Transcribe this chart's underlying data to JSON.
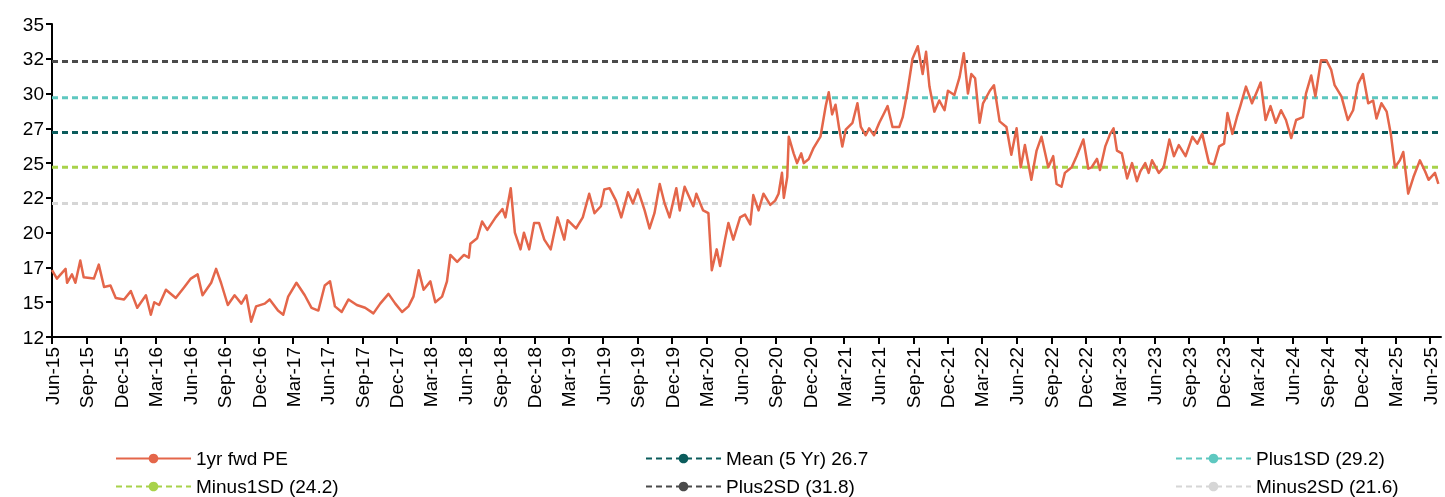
{
  "chart_data": {
    "type": "line",
    "line_style": "solid",
    "marker": "none",
    "grid": false,
    "legend": "bottom",
    "xlim": [
      "2015-06-01",
      "2025-06-30"
    ],
    "xticks": [
      {
        "value": "2015-06-01",
        "label": "Jun-15"
      },
      {
        "value": "2015-09-01",
        "label": "Sep-15"
      },
      {
        "value": "2015-12-01",
        "label": "Dec-15"
      },
      {
        "value": "2016-03-01",
        "label": "Mar-16"
      },
      {
        "value": "2016-06-01",
        "label": "Jun-16"
      },
      {
        "value": "2016-09-01",
        "label": "Sep-16"
      },
      {
        "value": "2016-12-01",
        "label": "Dec-16"
      },
      {
        "value": "2017-03-01",
        "label": "Mar-17"
      },
      {
        "value": "2017-06-01",
        "label": "Jun-17"
      },
      {
        "value": "2017-09-01",
        "label": "Sep-17"
      },
      {
        "value": "2017-12-01",
        "label": "Dec-17"
      },
      {
        "value": "2018-03-01",
        "label": "Mar-18"
      },
      {
        "value": "2018-06-01",
        "label": "Jun-18"
      },
      {
        "value": "2018-09-01",
        "label": "Sep-18"
      },
      {
        "value": "2018-12-01",
        "label": "Dec-18"
      },
      {
        "value": "2019-03-01",
        "label": "Mar-19"
      },
      {
        "value": "2019-06-01",
        "label": "Jun-19"
      },
      {
        "value": "2019-09-01",
        "label": "Sep-19"
      },
      {
        "value": "2019-12-01",
        "label": "Dec-19"
      },
      {
        "value": "2020-03-01",
        "label": "Mar-20"
      },
      {
        "value": "2020-06-01",
        "label": "Jun-20"
      },
      {
        "value": "2020-09-01",
        "label": "Sep-20"
      },
      {
        "value": "2020-12-01",
        "label": "Dec-20"
      },
      {
        "value": "2021-03-01",
        "label": "Mar-21"
      },
      {
        "value": "2021-06-01",
        "label": "Jun-21"
      },
      {
        "value": "2021-09-01",
        "label": "Sep-21"
      },
      {
        "value": "2021-12-01",
        "label": "Dec-21"
      },
      {
        "value": "2022-03-01",
        "label": "Mar-22"
      },
      {
        "value": "2022-06-01",
        "label": "Jun-22"
      },
      {
        "value": "2022-09-01",
        "label": "Sep-22"
      },
      {
        "value": "2022-12-01",
        "label": "Dec-22"
      },
      {
        "value": "2023-03-01",
        "label": "Mar-23"
      },
      {
        "value": "2023-06-01",
        "label": "Jun-23"
      },
      {
        "value": "2023-09-01",
        "label": "Sep-23"
      },
      {
        "value": "2023-12-01",
        "label": "Dec-23"
      },
      {
        "value": "2024-03-01",
        "label": "Mar-24"
      },
      {
        "value": "2024-06-01",
        "label": "Jun-24"
      },
      {
        "value": "2024-09-01",
        "label": "Sep-24"
      },
      {
        "value": "2024-12-01",
        "label": "Dec-24"
      },
      {
        "value": "2025-03-01",
        "label": "Mar-25"
      },
      {
        "value": "2025-06-01",
        "label": "Jun-25"
      }
    ],
    "ylim": [
      12,
      34.5
    ],
    "yticks": [
      12,
      {
        "value": 14.5,
        "label": "15"
      },
      17,
      {
        "value": 19.5,
        "label": "20"
      },
      22,
      {
        "value": 24.5,
        "label": "25"
      },
      27,
      {
        "value": 29.5,
        "label": "30"
      },
      32,
      {
        "value": 34.5,
        "label": "35"
      }
    ],
    "series": [
      {
        "name": "1yr fwd PE",
        "color": "#e4664a",
        "x": [
          "2015-06-01",
          "2015-06-14",
          "2015-07-07",
          "2015-07-11",
          "2015-07-24",
          "2015-08-02",
          "2015-08-15",
          "2015-08-24",
          "2015-09-20",
          "2015-10-03",
          "2015-10-17",
          "2015-11-03",
          "2015-11-17",
          "2015-12-09",
          "2015-12-27",
          "2016-01-13",
          "2016-02-05",
          "2016-02-18",
          "2016-02-27",
          "2016-03-11",
          "2016-03-29",
          "2016-04-24",
          "2016-05-17",
          "2016-06-03",
          "2016-06-21",
          "2016-07-04",
          "2016-07-27",
          "2016-08-09",
          "2016-08-22",
          "2016-09-09",
          "2016-09-27",
          "2016-10-15",
          "2016-10-28",
          "2016-11-10",
          "2016-11-23",
          "2016-12-16",
          "2016-12-29",
          "2017-01-20",
          "2017-02-03",
          "2017-02-16",
          "2017-03-10",
          "2017-04-01",
          "2017-04-19",
          "2017-05-07",
          "2017-05-24",
          "2017-06-07",
          "2017-06-20",
          "2017-07-08",
          "2017-07-26",
          "2017-08-17",
          "2017-09-08",
          "2017-09-30",
          "2017-10-18",
          "2017-11-09",
          "2017-11-27",
          "2017-12-15",
          "2018-01-01",
          "2018-01-14",
          "2018-01-28",
          "2018-02-10",
          "2018-02-28",
          "2018-03-13",
          "2018-03-31",
          "2018-04-13",
          "2018-04-22",
          "2018-05-10",
          "2018-05-28",
          "2018-06-10",
          "2018-06-14",
          "2018-07-02",
          "2018-07-15",
          "2018-07-29",
          "2018-08-20",
          "2018-09-07",
          "2018-09-15",
          "2018-09-29",
          "2018-10-10",
          "2018-10-25",
          "2018-11-03",
          "2018-11-17",
          "2018-11-30",
          "2018-12-13",
          "2018-12-27",
          "2019-01-13",
          "2019-01-31",
          "2019-02-18",
          "2019-02-27",
          "2019-03-21",
          "2019-04-08",
          "2019-04-25",
          "2019-05-09",
          "2019-05-26",
          "2019-06-04",
          "2019-06-18",
          "2019-07-05",
          "2019-07-19",
          "2019-08-06",
          "2019-08-19",
          "2019-09-01",
          "2019-09-19",
          "2019-10-02",
          "2019-10-15",
          "2019-10-29",
          "2019-11-11",
          "2019-11-24",
          "2019-12-12",
          "2019-12-21",
          "2020-01-03",
          "2020-01-26",
          "2020-02-03",
          "2020-02-21",
          "2020-03-06",
          "2020-03-15",
          "2020-03-28",
          "2020-04-06",
          "2020-04-19",
          "2020-04-28",
          "2020-05-11",
          "2020-05-29",
          "2020-06-11",
          "2020-06-25",
          "2020-07-03",
          "2020-07-17",
          "2020-07-30",
          "2020-08-17",
          "2020-08-30",
          "2020-09-08",
          "2020-09-17",
          "2020-09-22",
          "2020-10-01",
          "2020-10-05",
          "2020-10-18",
          "2020-10-27",
          "2020-11-07",
          "2020-11-14",
          "2020-11-27",
          "2020-12-10",
          "2020-12-28",
          "2021-01-11",
          "2021-01-19",
          "2021-01-28",
          "2021-02-06",
          "2021-02-15",
          "2021-02-24",
          "2021-03-05",
          "2021-03-23",
          "2021-04-05",
          "2021-04-14",
          "2021-04-27",
          "2021-05-06",
          "2021-05-19",
          "2021-06-02",
          "2021-06-15",
          "2021-06-24",
          "2021-07-07",
          "2021-07-25",
          "2021-08-03",
          "2021-08-16",
          "2021-08-29",
          "2021-09-12",
          "2021-09-25",
          "2021-10-04",
          "2021-10-13",
          "2021-10-26",
          "2021-11-08",
          "2021-11-22",
          "2021-12-01",
          "2021-12-18",
          "2022-01-01",
          "2022-01-12",
          "2022-01-23",
          "2022-02-01",
          "2022-02-11",
          "2022-02-23",
          "2022-03-04",
          "2022-03-22",
          "2022-04-02",
          "2022-04-17",
          "2022-05-05",
          "2022-05-18",
          "2022-06-01",
          "2022-06-12",
          "2022-06-23",
          "2022-07-10",
          "2022-07-24",
          "2022-08-06",
          "2022-08-24",
          "2022-09-06",
          "2022-09-15",
          "2022-09-28",
          "2022-10-07",
          "2022-10-25",
          "2022-11-07",
          "2022-11-25",
          "2022-12-08",
          "2022-12-17",
          "2022-12-31",
          "2023-01-08",
          "2023-01-22",
          "2023-02-04",
          "2023-02-13",
          "2023-02-22",
          "2023-03-07",
          "2023-03-21",
          "2023-04-03",
          "2023-04-16",
          "2023-04-25",
          "2023-05-08",
          "2023-05-17",
          "2023-05-26",
          "2023-06-13",
          "2023-06-26",
          "2023-07-11",
          "2023-07-23",
          "2023-08-05",
          "2023-08-23",
          "2023-09-10",
          "2023-09-23",
          "2023-10-06",
          "2023-10-24",
          "2023-11-06",
          "2023-11-20",
          "2023-12-03",
          "2023-12-12",
          "2023-12-25",
          "2024-01-06",
          "2024-01-15",
          "2024-01-30",
          "2024-02-15",
          "2024-02-29",
          "2024-03-09",
          "2024-03-22",
          "2024-04-04",
          "2024-04-18",
          "2024-05-02",
          "2024-05-15",
          "2024-05-29",
          "2024-06-11",
          "2024-06-29",
          "2024-07-07",
          "2024-07-21",
          "2024-08-01",
          "2024-08-16",
          "2024-08-30",
          "2024-09-12",
          "2024-09-21",
          "2024-10-09",
          "2024-10-26",
          "2024-11-09",
          "2024-11-22",
          "2024-12-05",
          "2024-12-19",
          "2025-01-01",
          "2025-01-10",
          "2025-01-23",
          "2025-02-06",
          "2025-02-17",
          "2025-02-28",
          "2025-03-13",
          "2025-03-22",
          "2025-04-04",
          "2025-04-18",
          "2025-05-05",
          "2025-05-19",
          "2025-05-28",
          "2025-06-14",
          "2025-06-23"
        ],
        "values": [
          16.8,
          16.2,
          16.9,
          15.9,
          16.5,
          15.9,
          17.5,
          16.3,
          16.2,
          17.2,
          15.6,
          15.7,
          14.8,
          14.7,
          15.3,
          14.1,
          15.0,
          13.6,
          14.5,
          14.3,
          15.4,
          14.8,
          15.6,
          16.2,
          16.5,
          15.0,
          15.9,
          16.9,
          15.9,
          14.3,
          15.0,
          14.4,
          15.0,
          13.1,
          14.2,
          14.4,
          14.7,
          13.9,
          13.6,
          14.9,
          15.9,
          15.0,
          14.1,
          13.9,
          15.7,
          16.0,
          14.2,
          13.8,
          14.7,
          14.3,
          14.1,
          13.7,
          14.4,
          15.1,
          14.4,
          13.8,
          14.2,
          14.9,
          16.8,
          15.4,
          16.0,
          14.5,
          14.9,
          16.0,
          17.9,
          17.4,
          17.9,
          17.7,
          18.7,
          19.1,
          20.3,
          19.7,
          20.6,
          21.2,
          20.6,
          22.7,
          19.5,
          18.3,
          19.5,
          18.3,
          20.2,
          20.2,
          19.0,
          18.3,
          20.6,
          19.0,
          20.4,
          19.8,
          20.6,
          22.3,
          20.9,
          21.4,
          22.6,
          22.7,
          21.8,
          20.6,
          22.4,
          21.6,
          22.6,
          21.1,
          19.8,
          20.9,
          23.0,
          21.6,
          20.6,
          22.7,
          21.1,
          22.8,
          21.4,
          22.3,
          21.1,
          20.9,
          16.8,
          18.3,
          17.1,
          19.0,
          20.2,
          19.0,
          20.6,
          20.8,
          20.1,
          22.2,
          21.1,
          22.3,
          21.5,
          21.8,
          22.3,
          23.8,
          22.0,
          23.5,
          26.4,
          25.2,
          24.5,
          25.2,
          24.5,
          24.8,
          25.6,
          26.4,
          28.6,
          29.6,
          28.0,
          28.7,
          27.1,
          25.7,
          26.9,
          27.4,
          28.8,
          27.1,
          26.5,
          27.0,
          26.5,
          27.4,
          28.1,
          28.6,
          27.1,
          27.1,
          27.8,
          29.7,
          32.0,
          32.9,
          30.9,
          32.5,
          30.0,
          28.2,
          29.0,
          28.3,
          29.7,
          29.4,
          30.7,
          32.4,
          29.5,
          30.9,
          30.6,
          27.4,
          28.8,
          29.7,
          30.1,
          27.5,
          27.1,
          25.1,
          27.0,
          24.2,
          25.8,
          23.3,
          25.4,
          26.4,
          24.2,
          25.0,
          23.0,
          22.8,
          23.8,
          24.2,
          25.0,
          26.2,
          24.1,
          24.2,
          24.8,
          24.0,
          25.7,
          26.6,
          27.0,
          25.4,
          25.2,
          23.4,
          24.5,
          23.2,
          23.9,
          24.5,
          23.8,
          24.7,
          23.8,
          24.2,
          26.2,
          25.0,
          25.8,
          25.0,
          26.4,
          25.9,
          26.6,
          24.5,
          24.4,
          25.7,
          25.9,
          28.1,
          26.6,
          27.8,
          28.6,
          30.0,
          28.8,
          29.7,
          30.3,
          27.6,
          28.6,
          27.4,
          28.3,
          27.6,
          26.3,
          27.6,
          27.8,
          29.5,
          30.8,
          29.3,
          31.9,
          31.9,
          31.2,
          30.1,
          29.3,
          27.6,
          28.3,
          30.2,
          30.9,
          28.8,
          29.0,
          27.7,
          28.8,
          28.2,
          26.6,
          24.2,
          24.7,
          25.3,
          22.3,
          23.5,
          24.7,
          23.9,
          23.3,
          23.8,
          23.0
        ]
      },
      {
        "name": "Mean (5 Yr) 26.7",
        "color": "#0b5c5c",
        "line_style": "dashed",
        "x": [
          "2015-06-01",
          "2025-06-30"
        ],
        "values": [
          26.7,
          26.7
        ]
      },
      {
        "name": "Plus1SD (29.2)",
        "color": "#5ec8c0",
        "line_style": "dashed",
        "x": [
          "2015-06-01",
          "2025-06-30"
        ],
        "values": [
          29.2,
          29.2
        ]
      },
      {
        "name": "Minus1SD (24.2)",
        "color": "#a8d24a",
        "line_style": "dashed",
        "x": [
          "2015-06-01",
          "2025-06-30"
        ],
        "values": [
          24.2,
          24.2
        ]
      },
      {
        "name": "Plus2SD (31.8)",
        "color": "#4a4a4a",
        "line_style": "dashed",
        "x": [
          "2015-06-01",
          "2025-06-30"
        ],
        "values": [
          31.8,
          31.8
        ]
      },
      {
        "name": "Minus2SD (21.6)",
        "color": "#d6d6d6",
        "line_style": "dashed",
        "x": [
          "2015-06-01",
          "2025-06-30"
        ],
        "values": [
          21.6,
          21.6
        ]
      }
    ]
  }
}
